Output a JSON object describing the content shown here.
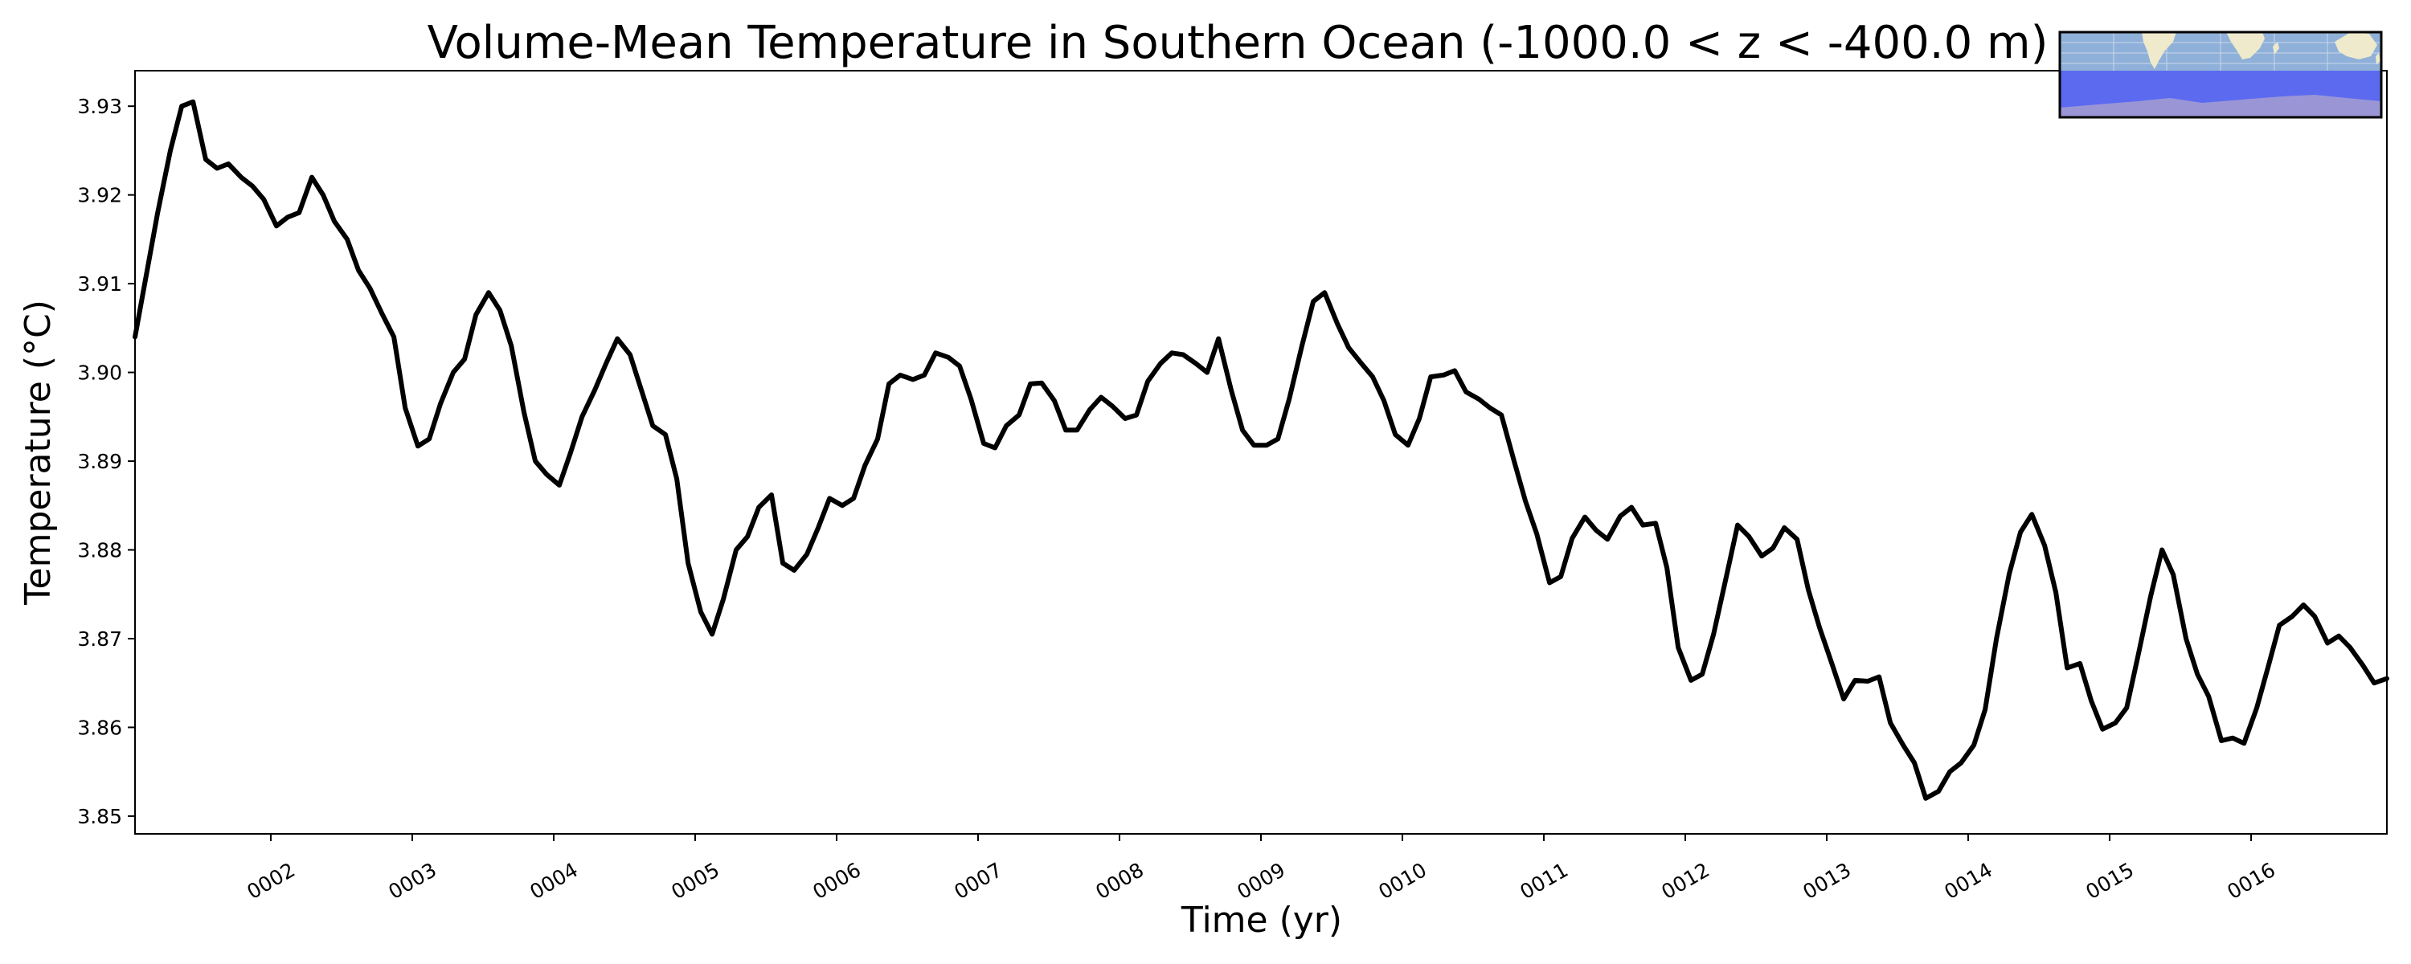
{
  "chart_data": {
    "type": "line",
    "title": "Volume-Mean Temperature in Southern Ocean (-1000.0 < z < -400.0 m)",
    "xlabel": "Time (yr)",
    "ylabel": "Temperature (°C)",
    "xlim": [
      1.04,
      16.96
    ],
    "ylim": [
      3.848,
      3.934
    ],
    "grid": false,
    "legend": "none",
    "line_color": "#000000",
    "x_ticks": [
      {
        "value": 2,
        "label": "0002"
      },
      {
        "value": 3,
        "label": "0003"
      },
      {
        "value": 4,
        "label": "0004"
      },
      {
        "value": 5,
        "label": "0005"
      },
      {
        "value": 6,
        "label": "0006"
      },
      {
        "value": 7,
        "label": "0007"
      },
      {
        "value": 8,
        "label": "0008"
      },
      {
        "value": 9,
        "label": "0009"
      },
      {
        "value": 10,
        "label": "0010"
      },
      {
        "value": 11,
        "label": "0011"
      },
      {
        "value": 12,
        "label": "0012"
      },
      {
        "value": 13,
        "label": "0013"
      },
      {
        "value": 14,
        "label": "0014"
      },
      {
        "value": 15,
        "label": "0015"
      },
      {
        "value": 16,
        "label": "0016"
      }
    ],
    "y_ticks": [
      {
        "value": 3.85,
        "label": "3.85"
      },
      {
        "value": 3.86,
        "label": "3.86"
      },
      {
        "value": 3.87,
        "label": "3.87"
      },
      {
        "value": 3.88,
        "label": "3.88"
      },
      {
        "value": 3.89,
        "label": "3.89"
      },
      {
        "value": 3.9,
        "label": "3.90"
      },
      {
        "value": 3.91,
        "label": "3.91"
      },
      {
        "value": 3.92,
        "label": "3.92"
      },
      {
        "value": 3.93,
        "label": "3.93"
      }
    ],
    "series": [
      {
        "x": [
          1.04,
          1.12,
          1.2,
          1.29,
          1.37,
          1.45,
          1.54,
          1.62,
          1.7,
          1.79,
          1.87,
          1.95,
          2.04,
          2.12,
          2.2,
          2.29,
          2.37,
          2.45,
          2.54,
          2.62,
          2.7,
          2.79,
          2.87,
          2.95,
          3.04,
          3.12,
          3.2,
          3.29,
          3.37,
          3.45,
          3.54,
          3.62,
          3.7,
          3.79,
          3.87,
          3.95,
          4.04,
          4.12,
          4.2,
          4.29,
          4.37,
          4.45,
          4.54,
          4.62,
          4.7,
          4.79,
          4.87,
          4.95,
          5.04,
          5.12,
          5.2,
          5.29,
          5.37,
          5.45,
          5.54,
          5.62,
          5.7,
          5.79,
          5.87,
          5.95,
          6.04,
          6.12,
          6.2,
          6.29,
          6.37,
          6.45,
          6.54,
          6.62,
          6.7,
          6.79,
          6.87,
          6.95,
          7.04,
          7.12,
          7.2,
          7.29,
          7.37,
          7.45,
          7.54,
          7.62,
          7.7,
          7.79,
          7.87,
          7.95,
          8.04,
          8.12,
          8.2,
          8.29,
          8.37,
          8.45,
          8.54,
          8.62,
          8.7,
          8.79,
          8.87,
          8.95,
          9.04,
          9.12,
          9.2,
          9.29,
          9.37,
          9.45,
          9.54,
          9.62,
          9.7,
          9.79,
          9.87,
          9.95,
          10.04,
          10.12,
          10.2,
          10.29,
          10.37,
          10.45,
          10.54,
          10.62,
          10.7,
          10.79,
          10.87,
          10.95,
          11.04,
          11.12,
          11.2,
          11.29,
          11.37,
          11.45,
          11.54,
          11.62,
          11.7,
          11.79,
          11.87,
          11.95,
          12.04,
          12.12,
          12.2,
          12.29,
          12.37,
          12.45,
          12.54,
          12.62,
          12.7,
          12.79,
          12.87,
          12.95,
          13.04,
          13.12,
          13.2,
          13.29,
          13.37,
          13.45,
          13.54,
          13.62,
          13.7,
          13.79,
          13.87,
          13.95,
          14.04,
          14.12,
          14.2,
          14.29,
          14.37,
          14.45,
          14.54,
          14.62,
          14.7,
          14.79,
          14.87,
          14.95,
          15.04,
          15.12,
          15.2,
          15.29,
          15.37,
          15.45,
          15.54,
          15.62,
          15.7,
          15.79,
          15.87,
          15.95,
          16.04,
          16.12,
          16.2,
          16.29,
          16.37,
          16.45,
          16.54,
          16.62,
          16.7,
          16.79,
          16.87,
          16.96
        ],
        "y": [
          3.904,
          3.911,
          3.918,
          3.925,
          3.93,
          3.9305,
          3.924,
          3.923,
          3.9235,
          3.922,
          3.921,
          3.9195,
          3.9165,
          3.9175,
          3.918,
          3.922,
          3.92,
          3.917,
          3.915,
          3.9115,
          3.9095,
          3.9065,
          3.904,
          3.896,
          3.8917,
          3.8925,
          3.8965,
          3.9,
          3.9015,
          3.9065,
          3.909,
          3.907,
          3.903,
          3.8955,
          3.89,
          3.8885,
          3.8873,
          3.891,
          3.895,
          3.898,
          3.901,
          3.9038,
          3.902,
          3.898,
          3.894,
          3.893,
          3.888,
          3.8785,
          3.873,
          3.8705,
          3.8745,
          3.88,
          3.8815,
          3.8848,
          3.8862,
          3.8785,
          3.8777,
          3.8795,
          3.8825,
          3.8858,
          3.885,
          3.8858,
          3.8895,
          3.8925,
          3.8987,
          3.8997,
          3.8992,
          3.8997,
          3.9022,
          3.9017,
          3.9007,
          3.897,
          3.892,
          3.8915,
          3.894,
          3.8952,
          3.8987,
          3.8988,
          3.8968,
          3.8935,
          3.8935,
          3.8958,
          3.8972,
          3.8962,
          3.8948,
          3.8952,
          3.899,
          3.901,
          3.9022,
          3.902,
          3.901,
          3.9,
          3.9038,
          3.898,
          3.8935,
          3.8918,
          3.8918,
          3.8925,
          3.897,
          3.903,
          3.908,
          3.909,
          3.9055,
          3.9028,
          3.9012,
          3.8995,
          3.8968,
          3.893,
          3.8918,
          3.8948,
          3.8995,
          3.8997,
          3.9002,
          3.8978,
          3.897,
          3.896,
          3.8952,
          3.89,
          3.8855,
          3.8818,
          3.8763,
          3.877,
          3.8813,
          3.8837,
          3.8822,
          3.8812,
          3.8838,
          3.8848,
          3.8828,
          3.883,
          3.878,
          3.869,
          3.8653,
          3.866,
          3.8705,
          3.877,
          3.8828,
          3.8815,
          3.8793,
          3.8802,
          3.8825,
          3.8812,
          3.8755,
          3.8712,
          3.867,
          3.8632,
          3.8653,
          3.8652,
          3.8657,
          3.8605,
          3.858,
          3.856,
          3.852,
          3.8528,
          3.855,
          3.856,
          3.858,
          3.862,
          3.87,
          3.8773,
          3.882,
          3.884,
          3.8805,
          3.8752,
          3.8667,
          3.8672,
          3.863,
          3.8598,
          3.8605,
          3.8622,
          3.868,
          3.8748,
          3.88,
          3.8772,
          3.87,
          3.866,
          3.8635,
          3.8585,
          3.8588,
          3.8582,
          3.8622,
          3.8668,
          3.8715,
          3.8725,
          3.8738,
          3.8725,
          3.8695,
          3.8703,
          3.869,
          3.867,
          3.865,
          3.8655
        ]
      }
    ]
  },
  "inset_map": {
    "description_colors": {
      "ocean": "#8fb0d8",
      "land": "#eeeacb",
      "region": "#5c6af0",
      "antarctica": "#9a96d6",
      "border": "#000000"
    }
  }
}
